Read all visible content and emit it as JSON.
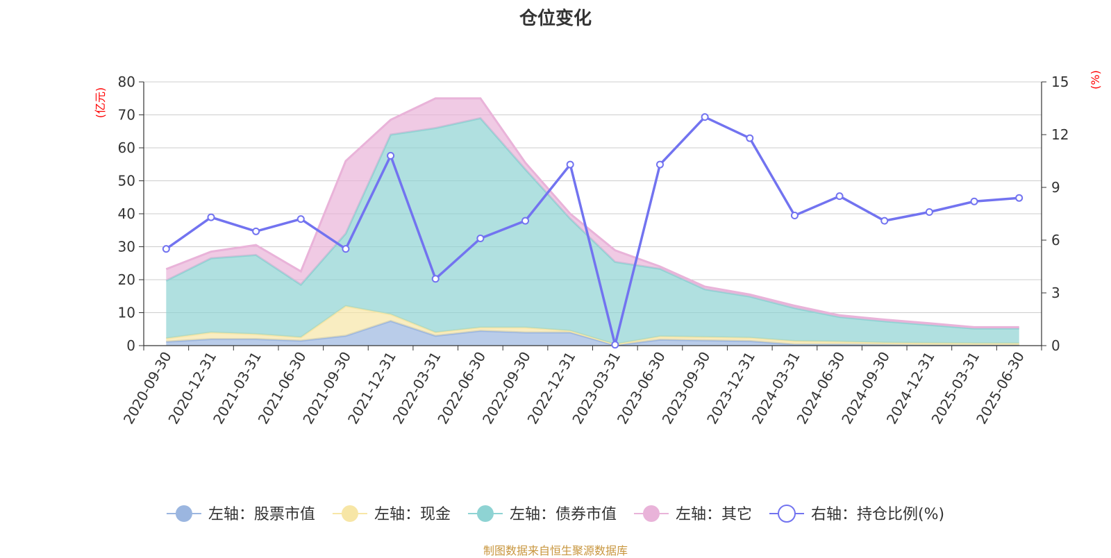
{
  "chart_data": {
    "type": "area",
    "title": "仓位变化",
    "source_note": "制图数据来自恒生聚源数据库",
    "x": [
      "2020-09-30",
      "2020-12-31",
      "2021-03-31",
      "2021-06-30",
      "2021-09-30",
      "2021-12-31",
      "2022-03-31",
      "2022-06-30",
      "2022-09-30",
      "2022-12-31",
      "2023-03-31",
      "2023-06-30",
      "2023-09-30",
      "2023-12-31",
      "2024-03-31",
      "2024-06-30",
      "2024-09-30",
      "2024-12-31",
      "2025-03-31",
      "2025-06-30"
    ],
    "left_axis": {
      "unit": "(亿元)",
      "ylim": [
        0,
        80
      ],
      "ticks": [
        "0",
        "10",
        "20",
        "30",
        "40",
        "50",
        "60",
        "70",
        "80"
      ]
    },
    "right_axis": {
      "unit": "(%)",
      "ylim": [
        0,
        15
      ],
      "ticks": [
        "0",
        "3",
        "6",
        "9",
        "12",
        "15"
      ]
    },
    "grid": true,
    "legend_position": "bottom",
    "series": [
      {
        "name": "左轴：股票市值",
        "axis": "left",
        "kind": "stacked-area",
        "color": "#9bb6e0",
        "values": [
          1.2,
          2.0,
          2.0,
          1.5,
          3.0,
          7.5,
          3.0,
          4.5,
          4.0,
          4.0,
          0.1,
          1.8,
          1.6,
          1.4,
          0.4,
          0.4,
          0.3,
          0.2,
          0.2,
          0.2
        ]
      },
      {
        "name": "左轴：现金",
        "axis": "left",
        "kind": "stacked-area",
        "color": "#f7e6a6",
        "values": [
          1.0,
          2.0,
          1.5,
          1.0,
          9.0,
          2.0,
          1.0,
          1.0,
          1.5,
          0.5,
          0.3,
          1.0,
          1.0,
          1.0,
          1.0,
          0.8,
          0.6,
          0.6,
          0.5,
          0.5
        ]
      },
      {
        "name": "左轴：债券市值",
        "axis": "left",
        "kind": "stacked-area",
        "color": "#8ed3d3",
        "values": [
          17.5,
          22.5,
          24.0,
          16.0,
          22.0,
          54.5,
          62.0,
          63.5,
          48.0,
          34.0,
          25.0,
          20.5,
          14.5,
          12.5,
          10.0,
          7.5,
          6.5,
          5.5,
          4.5,
          4.5
        ]
      },
      {
        "name": "左轴：其它",
        "axis": "left",
        "kind": "stacked-area",
        "color": "#e9b3d9",
        "values": [
          3.5,
          2.0,
          3.0,
          4.0,
          22.0,
          4.5,
          9.0,
          6.0,
          2.0,
          1.5,
          3.5,
          0.7,
          0.8,
          0.6,
          0.7,
          0.5,
          0.5,
          0.5,
          0.4,
          0.4
        ]
      },
      {
        "name": "右轴：持仓比例(%)",
        "axis": "right",
        "kind": "line",
        "color": "#7273f0",
        "values": [
          5.5,
          7.3,
          6.5,
          7.2,
          5.5,
          10.8,
          3.8,
          6.1,
          7.1,
          10.3,
          0.05,
          10.3,
          13.0,
          11.8,
          7.4,
          8.5,
          7.1,
          7.6,
          8.2,
          8.4
        ]
      }
    ],
    "colors": {
      "axis_unit": "#ff0000",
      "grid": "#cccccc",
      "axis_line": "#333333"
    }
  }
}
